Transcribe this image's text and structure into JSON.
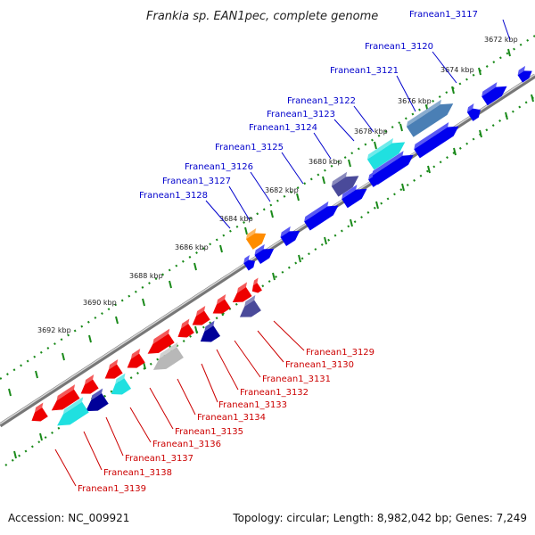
{
  "title": "Frankia sp. EAN1pec, complete genome",
  "scale_labels": [
    "3672 kbp",
    "3674 kbp",
    "3676 kbp",
    "3678 kbp",
    "3680 kbp",
    "3682 kbp",
    "3684 kbp",
    "3686 kbp",
    "3688 kbp",
    "3690 kbp",
    "3692 kbp"
  ],
  "upper_genes": [
    {
      "name": "Franean1_3117",
      "color": "#0000ee"
    },
    {
      "name": "Franean1_3120",
      "color": "#0000ee"
    },
    {
      "name": "Franean1_3121",
      "color": "#4a7fb5"
    },
    {
      "name": "Franean1_3122",
      "color": "#0000ee"
    },
    {
      "name": "Franean1_3123",
      "color": "#20e0e0"
    },
    {
      "name": "Franean1_3124",
      "color": "#0000ee"
    },
    {
      "name": "Franean1_3125",
      "color": "#4a4a9a"
    },
    {
      "name": "Franean1_3126",
      "color": "#0000ee"
    },
    {
      "name": "Franean1_3127",
      "color": "#0000ee"
    },
    {
      "name": "Franean1_3128",
      "color": "#ff8c00"
    }
  ],
  "lower_genes": [
    {
      "name": "Franean1_3129",
      "color": "#4a4a9a"
    },
    {
      "name": "Franean1_3130",
      "color": "#ee0000"
    },
    {
      "name": "Franean1_3131",
      "color": "#ee0000"
    },
    {
      "name": "Franean1_3132",
      "color": "#000099"
    },
    {
      "name": "Franean1_3133",
      "color": "#ee0000"
    },
    {
      "name": "Franean1_3134",
      "color": "#b8b8b8"
    },
    {
      "name": "Franean1_3135",
      "color": "#ee0000"
    },
    {
      "name": "Franean1_3136",
      "color": "#20e0e0"
    },
    {
      "name": "Franean1_3137",
      "color": "#000099"
    },
    {
      "name": "Franean1_3138",
      "color": "#ee0000"
    },
    {
      "name": "Franean1_3139",
      "color": "#20e0e0"
    }
  ],
  "colors": {
    "forward_strand": "#0000ee",
    "reverse_strand": "#ee0000",
    "backbone": "#888888",
    "scale_ticks": "#1a8a1a",
    "upper_label": "#0000cc",
    "lower_label": "#cc0000"
  },
  "footer": {
    "accession": "Accession: NC_009921",
    "summary": "Topology: circular; Length: 8,982,042 bp; Genes: 7,249"
  }
}
